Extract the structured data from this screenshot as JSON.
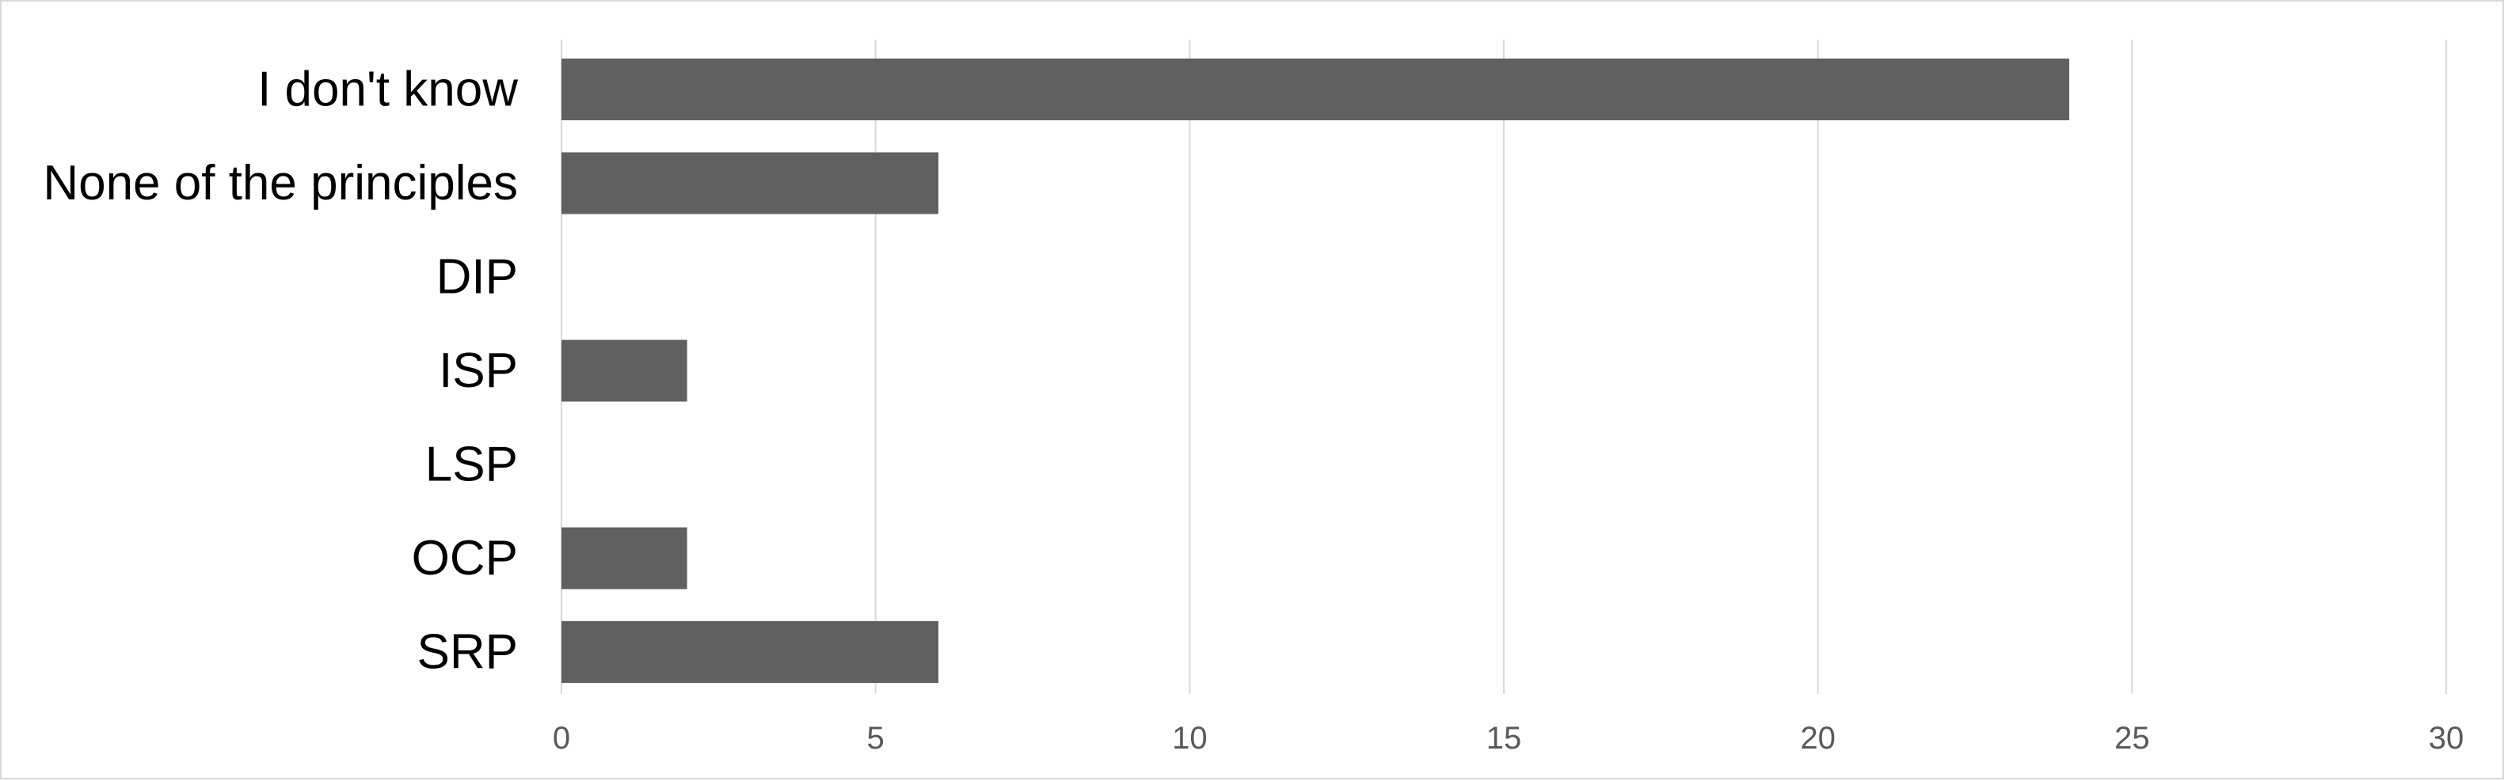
{
  "chart_data": {
    "type": "bar",
    "orientation": "horizontal",
    "title": "",
    "xlabel": "",
    "ylabel": "",
    "categories": [
      "I don't know",
      "None of the principles",
      "DIP",
      "ISP",
      "LSP",
      "OCP",
      "SRP"
    ],
    "values": [
      24,
      6,
      0,
      2,
      0,
      2,
      6
    ],
    "xlim": [
      0,
      30
    ],
    "xticks": [
      "0",
      "5",
      "10",
      "15",
      "20",
      "25",
      "30"
    ],
    "grid": "vertical gridlines",
    "legend": "none",
    "colors": {
      "bar": "#606060",
      "grid": "#d9d9d9",
      "border": "#d9d9d9",
      "tick_text": "#595959",
      "category_text": "#000000"
    }
  }
}
